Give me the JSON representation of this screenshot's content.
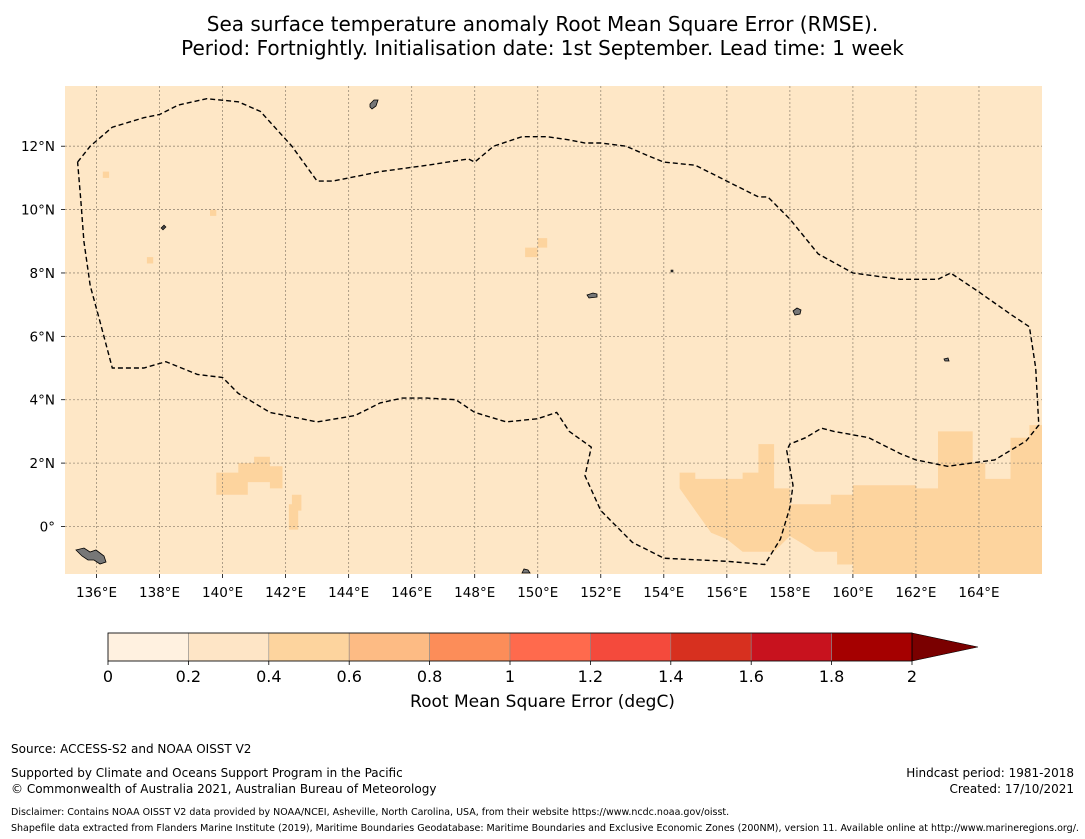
{
  "title": {
    "line1": "Sea surface temperature anomaly Root Mean Square Error (RMSE).",
    "line2": "Period: Fortnightly. Initialisation date: 1st September. Lead time: 1 week"
  },
  "map": {
    "lon_range": [
      135,
      166
    ],
    "lat_range": [
      -1.5,
      13.9
    ],
    "background_color": "#fee7c6",
    "x_ticks": [
      {
        "value": 136,
        "label": "136°E"
      },
      {
        "value": 138,
        "label": "138°E"
      },
      {
        "value": 140,
        "label": "140°E"
      },
      {
        "value": 142,
        "label": "142°E"
      },
      {
        "value": 144,
        "label": "144°E"
      },
      {
        "value": 146,
        "label": "146°E"
      },
      {
        "value": 148,
        "label": "148°E"
      },
      {
        "value": 150,
        "label": "150°E"
      },
      {
        "value": 152,
        "label": "152°E"
      },
      {
        "value": 154,
        "label": "154°E"
      },
      {
        "value": 156,
        "label": "156°E"
      },
      {
        "value": 158,
        "label": "158°E"
      },
      {
        "value": 160,
        "label": "160°E"
      },
      {
        "value": 162,
        "label": "162°E"
      },
      {
        "value": 164,
        "label": "164°E"
      }
    ],
    "y_ticks": [
      {
        "value": 12,
        "label": "12°N"
      },
      {
        "value": 10,
        "label": "10°N"
      },
      {
        "value": 8,
        "label": "8°N"
      },
      {
        "value": 6,
        "label": "6°N"
      },
      {
        "value": 4,
        "label": "4°N"
      },
      {
        "value": 2,
        "label": "2°N"
      },
      {
        "value": 0,
        "label": "0°"
      }
    ],
    "eez_boundary": [
      [
        135.4,
        11.5
      ],
      [
        135.8,
        12.0
      ],
      [
        136.5,
        12.6
      ],
      [
        137.5,
        12.9
      ],
      [
        138.0,
        13.0
      ],
      [
        138.6,
        13.3
      ],
      [
        139.5,
        13.5
      ],
      [
        140.5,
        13.4
      ],
      [
        141.2,
        13.1
      ],
      [
        142.2,
        12.0
      ],
      [
        143.0,
        10.9
      ],
      [
        143.5,
        10.9
      ],
      [
        145.0,
        11.2
      ],
      [
        146.5,
        11.4
      ],
      [
        147.8,
        11.6
      ],
      [
        148.0,
        11.5
      ],
      [
        148.6,
        12.0
      ],
      [
        149.5,
        12.3
      ],
      [
        150.3,
        12.3
      ],
      [
        151.0,
        12.2
      ],
      [
        151.5,
        12.1
      ],
      [
        152.0,
        12.1
      ],
      [
        152.8,
        12.0
      ],
      [
        153.5,
        11.7
      ],
      [
        154.0,
        11.5
      ],
      [
        155.0,
        11.4
      ],
      [
        156.0,
        10.9
      ],
      [
        157.0,
        10.4
      ],
      [
        157.3,
        10.4
      ],
      [
        158.0,
        9.7
      ],
      [
        158.9,
        8.6
      ],
      [
        160.0,
        8.0
      ],
      [
        161.5,
        7.8
      ],
      [
        162.7,
        7.8
      ],
      [
        163.1,
        8.0
      ],
      [
        164.0,
        7.4
      ],
      [
        165.0,
        6.7
      ],
      [
        165.6,
        6.3
      ],
      [
        165.8,
        5.0
      ],
      [
        165.9,
        3.2
      ],
      [
        165.5,
        2.7
      ],
      [
        164.5,
        2.1
      ],
      [
        163.0,
        1.9
      ],
      [
        162.0,
        2.1
      ],
      [
        161.5,
        2.3
      ],
      [
        160.5,
        2.8
      ],
      [
        159.4,
        3.0
      ],
      [
        159.0,
        3.1
      ],
      [
        158.5,
        2.8
      ],
      [
        158.0,
        2.6
      ],
      [
        157.9,
        2.4
      ],
      [
        158.1,
        1.3
      ],
      [
        158.0,
        0.6
      ],
      [
        157.7,
        -0.4
      ],
      [
        157.2,
        -1.2
      ],
      [
        156.0,
        -1.1
      ],
      [
        154.0,
        -1.0
      ],
      [
        153.0,
        -0.5
      ],
      [
        152.0,
        0.5
      ],
      [
        151.5,
        1.6
      ],
      [
        151.7,
        2.5
      ],
      [
        151.0,
        3.0
      ],
      [
        150.6,
        3.6
      ],
      [
        150.0,
        3.4
      ],
      [
        149.0,
        3.3
      ],
      [
        148.0,
        3.6
      ],
      [
        147.4,
        4.0
      ],
      [
        146.5,
        4.05
      ],
      [
        145.7,
        4.05
      ],
      [
        145.0,
        3.9
      ],
      [
        144.2,
        3.5
      ],
      [
        143.0,
        3.3
      ],
      [
        141.5,
        3.6
      ],
      [
        140.5,
        4.2
      ],
      [
        140.0,
        4.7
      ],
      [
        139.2,
        4.8
      ],
      [
        138.2,
        5.2
      ],
      [
        137.5,
        5.0
      ],
      [
        137.0,
        5.0
      ],
      [
        136.5,
        5.0
      ],
      [
        136.1,
        6.5
      ],
      [
        135.8,
        7.6
      ],
      [
        135.6,
        9.0
      ],
      [
        135.5,
        10.3
      ],
      [
        135.4,
        11.5
      ]
    ],
    "high_error_regions": [
      {
        "value": 0.4,
        "polygon": [
          [
            154.5,
            1.7
          ],
          [
            155.0,
            1.7
          ],
          [
            155.0,
            1.5
          ],
          [
            156.5,
            1.5
          ],
          [
            156.5,
            1.7
          ],
          [
            157.0,
            1.7
          ],
          [
            157.0,
            2.6
          ],
          [
            157.5,
            2.6
          ],
          [
            157.5,
            1.2
          ],
          [
            158.0,
            1.2
          ],
          [
            158.0,
            -0.3
          ],
          [
            157.5,
            -0.8
          ],
          [
            156.5,
            -0.8
          ],
          [
            156.0,
            -0.4
          ],
          [
            155.5,
            -0.2
          ],
          [
            155.0,
            0.5
          ],
          [
            154.5,
            1.2
          ]
        ]
      },
      {
        "value": 0.4,
        "polygon": [
          [
            158.0,
            0.7
          ],
          [
            159.3,
            0.7
          ],
          [
            159.3,
            1.0
          ],
          [
            160.0,
            1.0
          ],
          [
            160.0,
            1.3
          ],
          [
            162.0,
            1.3
          ],
          [
            162.0,
            1.2
          ],
          [
            162.7,
            1.2
          ],
          [
            162.7,
            3.0
          ],
          [
            163.8,
            3.0
          ],
          [
            163.8,
            2.0
          ],
          [
            164.2,
            2.0
          ],
          [
            164.2,
            1.5
          ],
          [
            164.5,
            1.5
          ],
          [
            164.5,
            1.5
          ],
          [
            165.0,
            1.5
          ],
          [
            165.0,
            2.8
          ],
          [
            165.6,
            2.8
          ],
          [
            165.6,
            3.2
          ],
          [
            166.0,
            3.2
          ],
          [
            166.0,
            -1.5
          ],
          [
            160.0,
            -1.5
          ],
          [
            160.0,
            -1.2
          ],
          [
            159.5,
            -1.2
          ],
          [
            159.5,
            -0.8
          ],
          [
            158.8,
            -0.8
          ],
          [
            158.5,
            -0.6
          ],
          [
            158.0,
            -0.3
          ]
        ]
      },
      {
        "value": 0.4,
        "polygon": [
          [
            139.8,
            1.7
          ],
          [
            140.5,
            1.7
          ],
          [
            140.5,
            2.0
          ],
          [
            141.0,
            2.0
          ],
          [
            141.0,
            2.2
          ],
          [
            141.5,
            2.2
          ],
          [
            141.5,
            1.9
          ],
          [
            141.9,
            1.9
          ],
          [
            141.9,
            1.2
          ],
          [
            141.5,
            1.2
          ],
          [
            141.5,
            1.4
          ],
          [
            140.8,
            1.4
          ],
          [
            140.8,
            1.0
          ],
          [
            140.3,
            1.0
          ],
          [
            140.3,
            1.0
          ],
          [
            139.8,
            1.0
          ]
        ]
      },
      {
        "value": 0.4,
        "polygon": [
          [
            142.2,
            1.0
          ],
          [
            142.5,
            1.0
          ],
          [
            142.5,
            0.5
          ],
          [
            142.4,
            0.5
          ],
          [
            142.4,
            -0.1
          ],
          [
            142.1,
            -0.1
          ],
          [
            142.1,
            0.7
          ],
          [
            142.2,
            0.7
          ]
        ]
      },
      {
        "value": 0.4,
        "polygon": [
          [
            149.6,
            8.5
          ],
          [
            150.0,
            8.5
          ],
          [
            150.0,
            8.8
          ],
          [
            150.3,
            8.8
          ],
          [
            150.3,
            9.1
          ],
          [
            150.0,
            9.1
          ],
          [
            150.0,
            8.8
          ],
          [
            149.6,
            8.8
          ]
        ]
      },
      {
        "value": 0.4,
        "polygon": [
          [
            139.6,
            9.8
          ],
          [
            139.8,
            9.8
          ],
          [
            139.8,
            10.0
          ],
          [
            139.6,
            10.0
          ]
        ]
      },
      {
        "value": 0.4,
        "polygon": [
          [
            137.6,
            8.3
          ],
          [
            137.8,
            8.3
          ],
          [
            137.8,
            8.5
          ],
          [
            137.6,
            8.5
          ]
        ]
      },
      {
        "value": 0.4,
        "polygon": [
          [
            136.2,
            11.0
          ],
          [
            136.4,
            11.0
          ],
          [
            136.4,
            11.2
          ],
          [
            136.2,
            11.2
          ]
        ]
      }
    ]
  },
  "colorbar": {
    "colors": [
      "#fff1e0",
      "#fee5c6",
      "#fdd49e",
      "#fdbb84",
      "#fc8d59",
      "#ff6a4d",
      "#f44a3c",
      "#d7301f",
      "#c8121e",
      "#a50000",
      "#7a0000"
    ],
    "ticks": [
      "0",
      "0.2",
      "0.4",
      "0.6",
      "0.8",
      "1",
      "1.2",
      "1.4",
      "1.6",
      "1.8",
      "2"
    ],
    "label": "Root Mean Square Error (degC)"
  },
  "footer": {
    "source": "Source: ACCESS-S2 and NOAA OISST V2",
    "supported": "Supported by Climate and Oceans Support Program in the Pacific",
    "copyright": "© Commonwealth of Australia 2021, Australian Bureau of Meteorology",
    "hindcast": "Hindcast period: 1981-2018",
    "created": "Created: 17/10/2021",
    "disclaimer": "Disclaimer: Contains NOAA OISST V2 data provided by NOAA/NCEI, Asheville, North Carolina, USA, from their website https://www.ncdc.noaa.gov/oisst.",
    "shapefile": "Shapefile data extracted from Flanders Marine Institute (2019), Maritime Boundaries Geodatabase: Maritime Boundaries and Exclusive Economic Zones (200NM), version 11. Available online at http://www.marineregions.org/."
  }
}
